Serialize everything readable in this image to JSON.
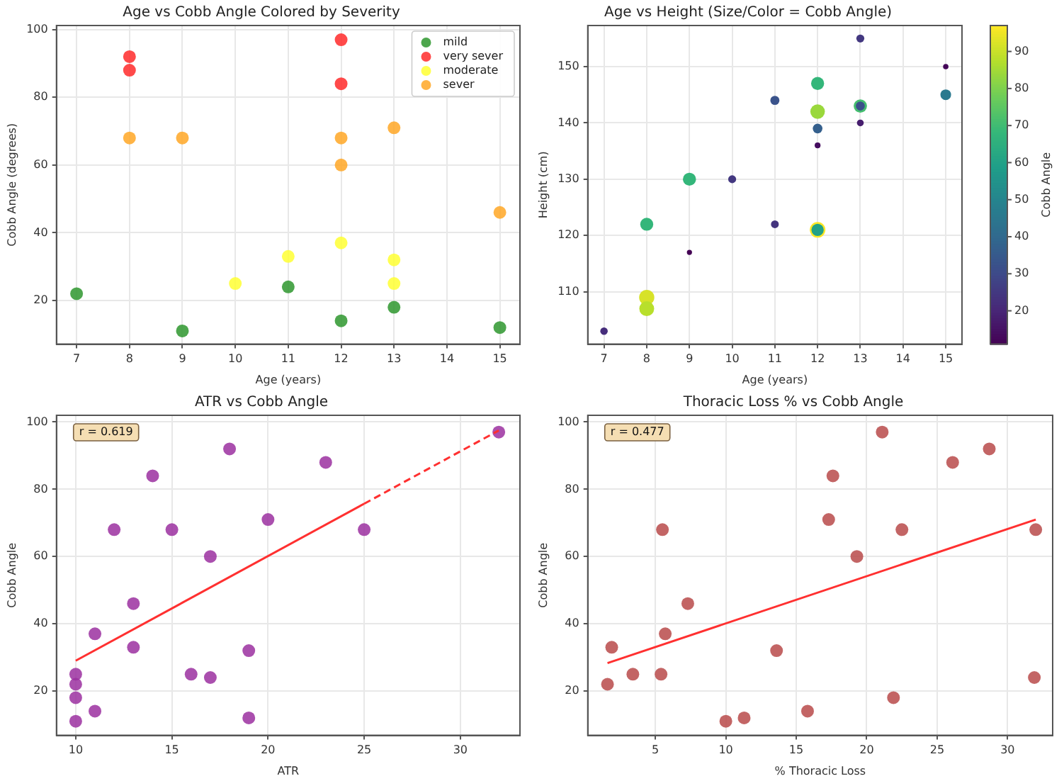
{
  "chart_data": [
    {
      "type": "scatter",
      "title": "Age vs Cobb Angle Colored by Severity",
      "xlabel": "Age (years)",
      "ylabel": "Cobb Angle (degrees)",
      "xlim": [
        6.62,
        15.38
      ],
      "xticks": [
        7,
        8,
        9,
        10,
        11,
        12,
        13,
        14,
        15
      ],
      "ylim": [
        7.1,
        101.2
      ],
      "yticks": [
        20,
        40,
        60,
        80,
        100
      ],
      "grid": true,
      "legend": "top right",
      "marker": "circle",
      "series": [
        {
          "name": "mild",
          "color": "#2e962e",
          "x": [
            7,
            9,
            11,
            12,
            13,
            15
          ],
          "values": [
            22,
            11,
            24,
            14,
            18,
            12
          ]
        },
        {
          "name": "very sever",
          "color": "#ff2a2a",
          "x": [
            8,
            8,
            12,
            12
          ],
          "values": [
            92,
            88,
            97,
            84
          ]
        },
        {
          "name": "moderate",
          "color": "#ffff33",
          "x": [
            10,
            11,
            12,
            13,
            13
          ],
          "values": [
            25,
            33,
            37,
            32,
            25
          ]
        },
        {
          "name": "sever",
          "color": "#ffa726",
          "x": [
            8,
            9,
            12,
            12,
            13,
            15
          ],
          "values": [
            68,
            68,
            68,
            60,
            71,
            46
          ]
        }
      ]
    },
    {
      "type": "bubble",
      "title": "Age vs Height (Size/Color = Cobb Angle)",
      "xlabel": "Age (years)",
      "ylabel": "Height (cm)",
      "clabel": "Cobb Angle",
      "xlim": [
        6.62,
        15.38
      ],
      "xticks": [
        7,
        8,
        9,
        10,
        11,
        12,
        13,
        14,
        15
      ],
      "ylim": [
        100.7,
        157.3
      ],
      "yticks": [
        110,
        120,
        130,
        140,
        150
      ],
      "clim": [
        11,
        97
      ],
      "cticks": [
        20,
        30,
        40,
        50,
        60,
        70,
        80,
        90
      ],
      "grid": true,
      "marker": "circle",
      "x": [
        7,
        8,
        8,
        8,
        9,
        9,
        10,
        11,
        11,
        12,
        12,
        12,
        12,
        12,
        12,
        13,
        13,
        13,
        13,
        15,
        15
      ],
      "values": [
        103,
        109,
        107,
        122,
        117,
        130,
        130,
        122,
        144,
        136,
        121,
        121,
        147,
        142,
        139,
        155,
        143,
        143,
        140,
        150,
        145
      ],
      "cvalues": [
        22,
        92,
        88,
        68,
        11,
        68,
        25,
        24,
        33,
        14,
        97,
        60,
        68,
        84,
        37,
        25,
        71,
        32,
        18,
        12,
        46
      ],
      "sizes": [
        0.23,
        0.95,
        0.91,
        0.7,
        0.11,
        0.7,
        0.26,
        0.25,
        0.34,
        0.14,
        1,
        0.62,
        0.7,
        0.87,
        0.38,
        0.26,
        0.73,
        0.33,
        0.19,
        0.12,
        0.47
      ]
    },
    {
      "type": "scatter",
      "title": "ATR vs Cobb Angle",
      "xlabel": "ATR",
      "ylabel": "Cobb Angle",
      "xlim": [
        9,
        33.1
      ],
      "xticks": [
        10,
        15,
        20,
        25,
        30
      ],
      "ylim": [
        6.8,
        102
      ],
      "yticks": [
        20,
        40,
        60,
        80,
        100
      ],
      "grid": true,
      "marker": "circle",
      "annotations": [
        "r = 0.619"
      ],
      "series": [
        {
          "color": "#9b30a0",
          "x": [
            10,
            10,
            10,
            10,
            11,
            11,
            12,
            13,
            13,
            14,
            15,
            16,
            17,
            17,
            18,
            19,
            19,
            20,
            23,
            25,
            32
          ],
          "values": [
            25,
            22,
            18,
            11,
            37,
            14,
            68,
            46,
            33,
            84,
            68,
            25,
            60,
            24,
            92,
            32,
            12,
            71,
            88,
            68,
            97
          ]
        },
        {
          "type": "line",
          "color": "#ff3030",
          "line_style": "solid",
          "marker": "none",
          "x": [
            10,
            25
          ],
          "values": [
            29,
            75.7
          ]
        },
        {
          "type": "line",
          "color": "#ff3030",
          "line_style": "dashed",
          "marker": "none",
          "x": [
            25,
            32
          ],
          "values": [
            75.7,
            97.5
          ]
        }
      ]
    },
    {
      "type": "scatter",
      "title": "Thoracic Loss % vs Cobb Angle",
      "xlabel": "% Thoracic Loss",
      "ylabel": "Cobb Angle",
      "xlim": [
        0.2,
        33.2
      ],
      "xticks": [
        5,
        10,
        15,
        20,
        25,
        30
      ],
      "ylim": [
        6.8,
        102
      ],
      "yticks": [
        20,
        40,
        60,
        80,
        100
      ],
      "grid": true,
      "marker": "circle",
      "annotations": [
        "r = 0.477"
      ],
      "series": [
        {
          "color": "#b84a4a",
          "x": [
            1.6,
            1.9,
            3.4,
            5.4,
            5.5,
            5.7,
            7.3,
            10,
            11.3,
            13.6,
            15.8,
            17.3,
            17.6,
            19.3,
            21.1,
            21.9,
            22.5,
            26.1,
            28.7,
            31.9,
            32
          ],
          "values": [
            22,
            33,
            25,
            25,
            68,
            37,
            46,
            11,
            12,
            32,
            14,
            71,
            84,
            60,
            97,
            18,
            68,
            88,
            92,
            24,
            68
          ]
        },
        {
          "type": "line",
          "color": "#ff3030",
          "line_style": "solid",
          "marker": "none",
          "x": [
            1.6,
            32
          ],
          "values": [
            28.3,
            71
          ]
        }
      ]
    }
  ]
}
